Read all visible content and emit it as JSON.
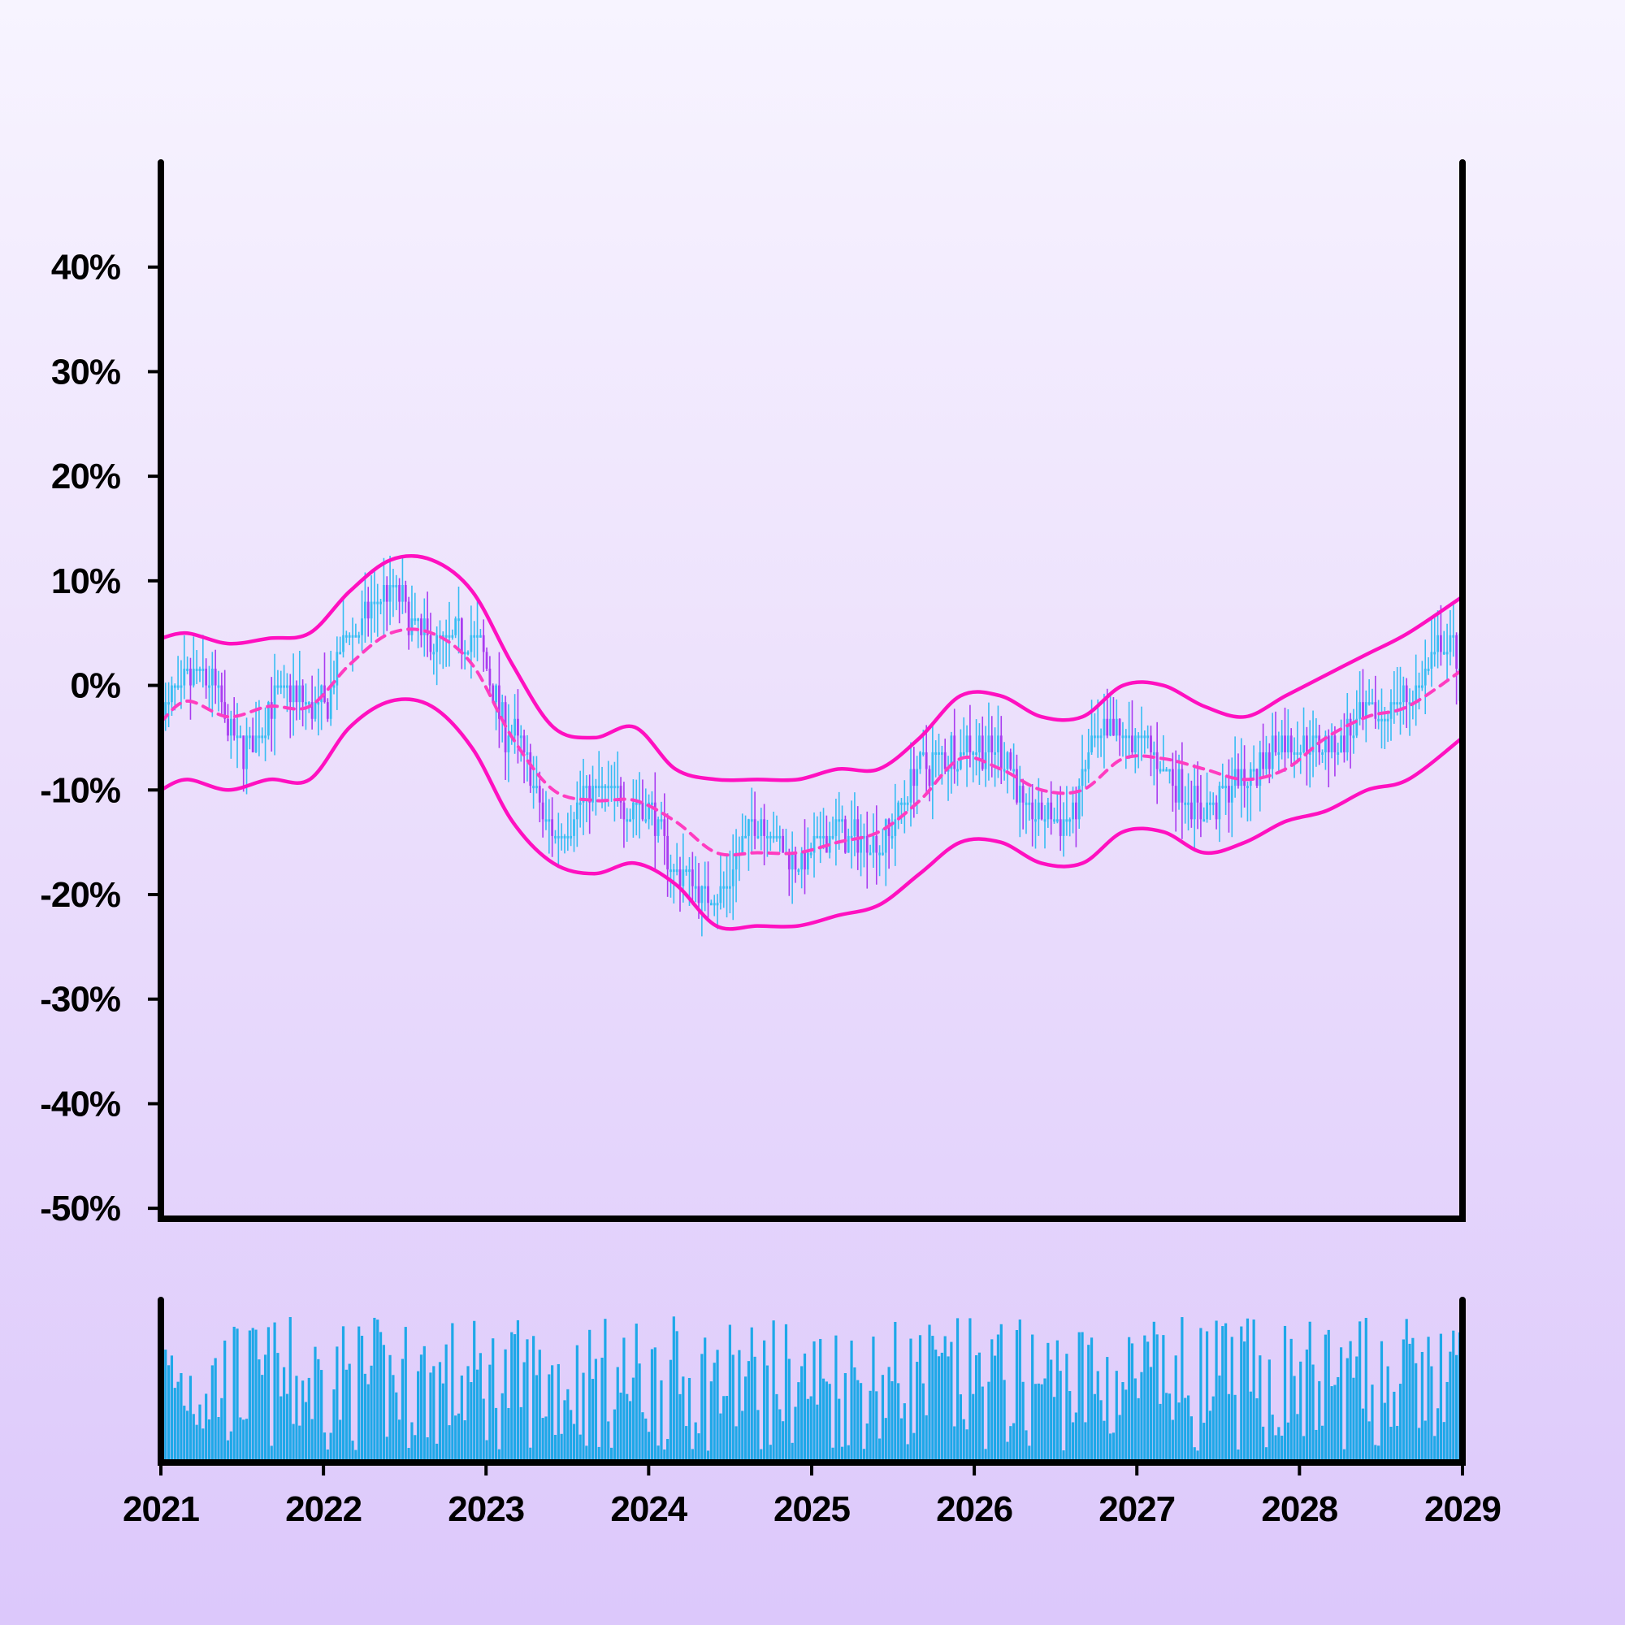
{
  "chart_data": {
    "type": "candlestick",
    "title": "",
    "xlabel": "",
    "ylabel": "",
    "x_ticks": [
      "2021",
      "2022",
      "2023",
      "2024",
      "2025",
      "2026",
      "2027",
      "2028",
      "2029"
    ],
    "y_ticks": [
      "40%",
      "30%",
      "20%",
      "10%",
      "0%",
      "-10%",
      "-20%",
      "-30%",
      "-40%",
      "-50%"
    ],
    "xlim": [
      "2021-01-01",
      "2029-01-01"
    ],
    "ylim": [
      -51,
      50
    ],
    "grid": false,
    "legend": "none",
    "colors": {
      "up_candle": "#37bdf2",
      "down_candle": "#a93cf0",
      "bands": "#ff10c0",
      "moving_average": "#ff3cc0",
      "volume": "#1ea8e8",
      "axes": "#000000"
    },
    "price_anchors": {
      "x": [
        "2021-01-01",
        "2021-04-01",
        "2021-07-01",
        "2021-10-01",
        "2022-01-01",
        "2022-03-01",
        "2022-06-01",
        "2022-09-01",
        "2022-12-01",
        "2023-03-01",
        "2023-06-01",
        "2023-09-01",
        "2024-01-01",
        "2024-03-01",
        "2024-06-01",
        "2024-09-01",
        "2024-12-01",
        "2025-03-01",
        "2025-06-01",
        "2025-09-01",
        "2025-12-01",
        "2026-03-01",
        "2026-05-01",
        "2026-08-01",
        "2026-10-01",
        "2027-01-01",
        "2027-04-01",
        "2027-06-01",
        "2027-09-01",
        "2027-12-01",
        "2028-03-01",
        "2028-06-01",
        "2028-09-01",
        "2028-12-01",
        "2029-01-01"
      ],
      "close": [
        -2,
        1,
        -6,
        -1,
        -2,
        5,
        9,
        4,
        5,
        -5,
        -14,
        -10,
        -12,
        -18,
        -20,
        -13,
        -17,
        -14,
        -15,
        -8,
        -6,
        -6,
        -12,
        -13,
        -5,
        -5,
        -9,
        -12,
        -9,
        -5,
        -6,
        -3,
        -1,
        4,
        3
      ]
    },
    "series": [
      {
        "name": "",
        "kind": "upper_band",
        "x": [
          "2021-01-01",
          "2021-03-01",
          "2021-06-01",
          "2021-09-01",
          "2021-12-01",
          "2022-03-01",
          "2022-06-01",
          "2022-09-01",
          "2022-12-01",
          "2023-03-01",
          "2023-06-01",
          "2023-09-01",
          "2023-12-01",
          "2024-03-01",
          "2024-06-01",
          "2024-09-01",
          "2024-12-01",
          "2025-03-01",
          "2025-06-01",
          "2025-09-01",
          "2025-12-01",
          "2026-03-01",
          "2026-06-01",
          "2026-09-01",
          "2026-12-01",
          "2027-03-01",
          "2027-06-01",
          "2027-09-01",
          "2027-12-01",
          "2028-03-01",
          "2028-06-01",
          "2028-09-01",
          "2029-01-01"
        ],
        "values": [
          4.5,
          5,
          4,
          4.5,
          5,
          9,
          12,
          12,
          9,
          2,
          -4,
          -5,
          -4,
          -8,
          -9,
          -9,
          -9,
          -8,
          -8,
          -5,
          -1,
          -1,
          -3,
          -3,
          0,
          0,
          -2,
          -3,
          -1,
          1,
          3,
          5,
          8.5
        ]
      },
      {
        "name": "",
        "kind": "moving_average",
        "x": [
          "2021-01-01",
          "2021-03-01",
          "2021-06-01",
          "2021-09-01",
          "2021-12-01",
          "2022-03-01",
          "2022-06-01",
          "2022-09-01",
          "2022-12-01",
          "2023-03-01",
          "2023-06-01",
          "2023-09-01",
          "2023-12-01",
          "2024-03-01",
          "2024-06-01",
          "2024-09-01",
          "2024-12-01",
          "2025-03-01",
          "2025-06-01",
          "2025-09-01",
          "2025-12-01",
          "2026-03-01",
          "2026-06-01",
          "2026-09-01",
          "2026-12-01",
          "2027-03-01",
          "2027-06-01",
          "2027-09-01",
          "2027-12-01",
          "2028-03-01",
          "2028-06-01",
          "2028-09-01",
          "2029-01-01"
        ],
        "values": [
          -3.5,
          -1.5,
          -3,
          -2,
          -2,
          2,
          5,
          5,
          2,
          -5,
          -10,
          -11,
          -11,
          -13,
          -16,
          -16,
          -16,
          -15,
          -14,
          -11,
          -7,
          -8,
          -10,
          -10,
          -7,
          -7,
          -8,
          -9,
          -8,
          -5,
          -3,
          -2,
          1.5
        ]
      },
      {
        "name": "",
        "kind": "lower_band",
        "x": [
          "2021-01-01",
          "2021-03-01",
          "2021-06-01",
          "2021-09-01",
          "2021-12-01",
          "2022-03-01",
          "2022-06-01",
          "2022-09-01",
          "2022-12-01",
          "2023-03-01",
          "2023-06-01",
          "2023-09-01",
          "2023-12-01",
          "2024-03-01",
          "2024-06-01",
          "2024-09-01",
          "2024-12-01",
          "2025-03-01",
          "2025-06-01",
          "2025-09-01",
          "2025-12-01",
          "2026-03-01",
          "2026-06-01",
          "2026-09-01",
          "2026-12-01",
          "2027-03-01",
          "2027-06-01",
          "2027-09-01",
          "2027-12-01",
          "2028-03-01",
          "2028-06-01",
          "2028-09-01",
          "2029-01-01"
        ],
        "values": [
          -10,
          -9,
          -10,
          -9,
          -9,
          -4,
          -1.5,
          -2,
          -6,
          -13,
          -17,
          -18,
          -17,
          -19,
          -23,
          -23,
          -23,
          -22,
          -21,
          -18,
          -15,
          -15,
          -17,
          -17,
          -14,
          -14,
          -16,
          -15,
          -13,
          -12,
          -10,
          -9,
          -5
        ]
      }
    ],
    "volume": {
      "type": "bar",
      "relative_range": [
        0,
        1
      ]
    }
  }
}
